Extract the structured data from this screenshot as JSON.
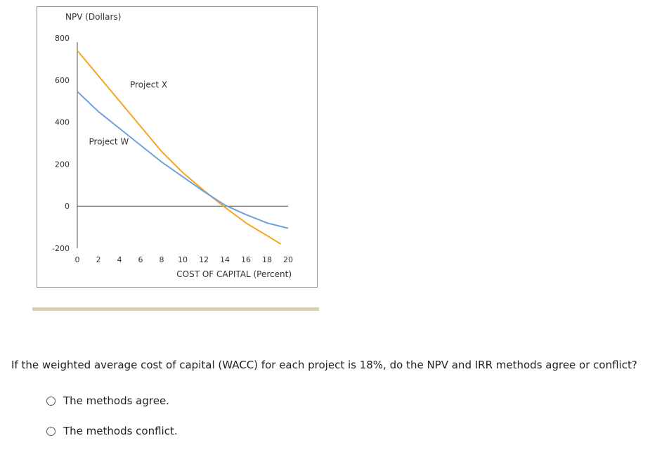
{
  "chart_data": {
    "type": "line",
    "ylabel": "NPV (Dollars)",
    "xlabel": "COST OF CAPITAL (Percent)",
    "ylim": [
      -200,
      800
    ],
    "xlim": [
      0,
      20
    ],
    "y_ticks": [
      800,
      600,
      400,
      200,
      0,
      -200
    ],
    "x_ticks": [
      0,
      2,
      4,
      6,
      8,
      10,
      12,
      14,
      16,
      18,
      20
    ],
    "annotations": [
      "Project X",
      "Project W"
    ],
    "series": [
      {
        "name": "Project X",
        "color": "#f5a623",
        "x": [
          0,
          2,
          4,
          6,
          8,
          10,
          12,
          14,
          16,
          18,
          19.3
        ],
        "y": [
          740,
          620,
          500,
          380,
          260,
          160,
          75,
          -5,
          -80,
          -140,
          -180
        ]
      },
      {
        "name": "Project W",
        "color": "#6fa0dc",
        "x": [
          0,
          2,
          4,
          6,
          8,
          10,
          12,
          14,
          16,
          18,
          20
        ],
        "y": [
          545,
          450,
          370,
          290,
          210,
          140,
          70,
          5,
          -40,
          -80,
          -105
        ]
      }
    ]
  },
  "question": {
    "text": "If the weighted average cost of capital (WACC) for each project is 18%, do the NPV and IRR methods agree or conflict?"
  },
  "options": [
    {
      "label": "The methods agree."
    },
    {
      "label": "The methods conflict."
    }
  ],
  "colors": {
    "divider": "#ddd0a8",
    "axis": "#555555"
  }
}
